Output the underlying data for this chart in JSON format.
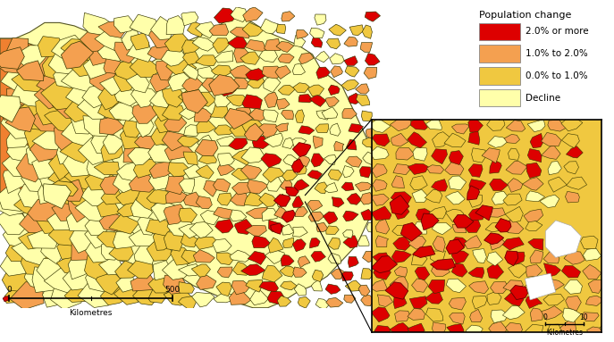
{
  "legend_title": "Population change",
  "legend_items": [
    {
      "label": "2.0% or more",
      "color": "#dd0000"
    },
    {
      "label": "1.0% to 2.0%",
      "color": "#f4a050"
    },
    {
      "label": "0.0% to 1.0%",
      "color": "#f0c840"
    },
    {
      "label": "Decline",
      "color": "#ffffaa"
    }
  ],
  "colors": {
    "high": "#dd0000",
    "medium": "#f4a050",
    "low": "#f0c840",
    "decline": "#ffffaa",
    "background": "#ffffff",
    "dark_border": "#333300",
    "light_border": "#888844",
    "west_orange": "#f08030",
    "water": "#ffffff"
  },
  "figsize": [
    6.87,
    3.83
  ],
  "dpi": 100
}
